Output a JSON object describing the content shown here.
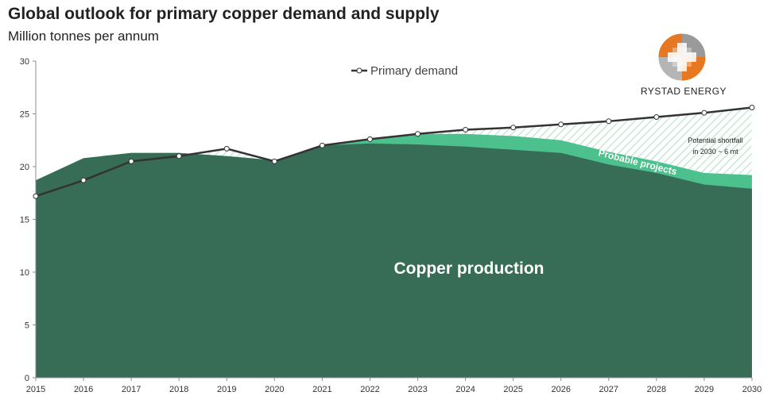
{
  "header": {
    "title": "Global outlook for primary copper demand and supply",
    "subtitle": "Million tonnes per annum"
  },
  "logo": {
    "label": "RYSTAD ENERGY",
    "icon": "rystad-globe-icon"
  },
  "colors": {
    "production": "#376d57",
    "probable": "#4cc08d",
    "shortfall_hatch": "#c8e7d8",
    "demand_line": "#333333",
    "logo_orange": "#e87722",
    "logo_grey": "#9a9a9a"
  },
  "chart_data": {
    "type": "area",
    "x": [
      2015,
      2016,
      2017,
      2018,
      2019,
      2020,
      2021,
      2022,
      2023,
      2024,
      2025,
      2026,
      2027,
      2028,
      2029,
      2030
    ],
    "ylim": [
      0,
      30
    ],
    "yticks": [
      0,
      5,
      10,
      15,
      20,
      25,
      30
    ],
    "series": [
      {
        "kind": "area",
        "values": [
          18.7,
          20.8,
          21.3,
          21.3,
          21.0,
          20.6,
          22.0,
          22.2,
          22.1,
          21.9,
          21.6,
          21.3,
          20.2,
          19.4,
          18.3,
          17.9
        ]
      },
      {
        "kind": "area",
        "values": [
          18.7,
          20.8,
          21.3,
          21.3,
          21.0,
          20.6,
          22.0,
          22.6,
          23.1,
          23.1,
          22.9,
          22.5,
          21.4,
          20.5,
          19.4,
          19.2
        ]
      },
      {
        "kind": "line",
        "name": "Primary demand",
        "values": [
          17.2,
          18.7,
          20.5,
          21.0,
          21.7,
          20.5,
          22.0,
          22.6,
          23.1,
          23.5,
          23.7,
          24.0,
          24.3,
          24.7,
          25.1,
          25.6
        ]
      }
    ],
    "legend": {
      "label": "Primary demand",
      "placement": "top-center"
    },
    "annotations": {
      "production": "Copper production",
      "probable": "Probable projects",
      "shortfall_line1": "Potential shortfall",
      "shortfall_line2": "in 2030 ~ 6 mt"
    }
  }
}
